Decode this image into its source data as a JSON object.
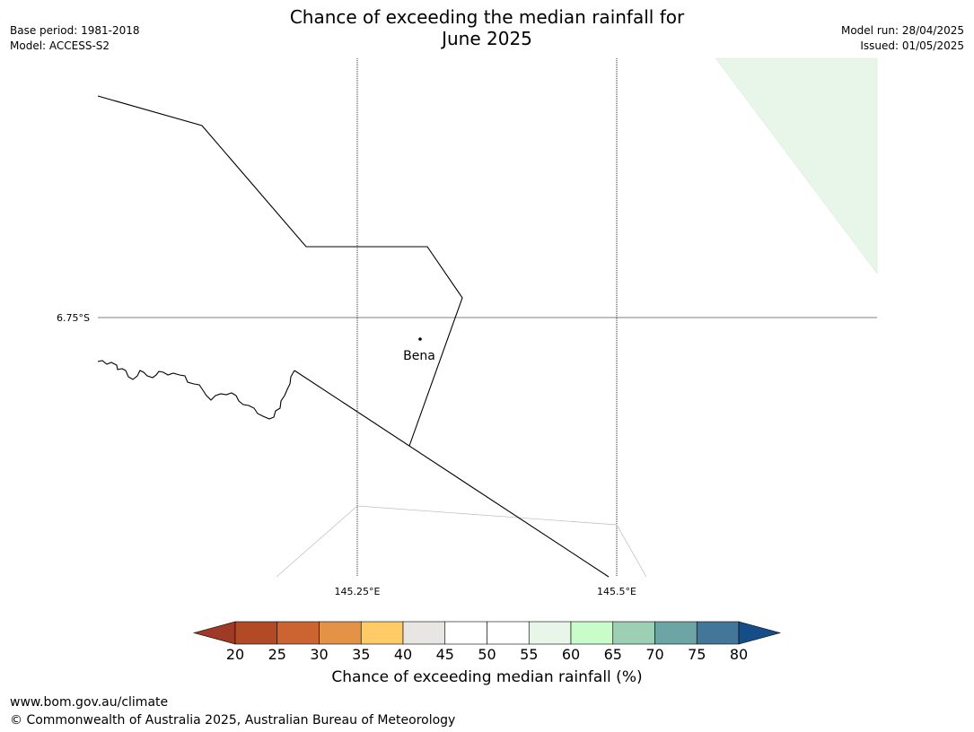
{
  "title": {
    "line1": "Chance of exceeding the median rainfall for",
    "line2": "June 2025"
  },
  "meta_left": {
    "base_period": "Base period: 1981-2018",
    "model": "Model: ACCESS-S2"
  },
  "meta_right": {
    "model_run": "Model run: 28/04/2025",
    "issued": "Issued: 01/05/2025"
  },
  "map": {
    "latitude_labels": [
      "6.75°S"
    ],
    "longitude_labels": [
      "145.25°E",
      "145.5°E"
    ],
    "place": "Bena",
    "shading_color": "#e8f5e9"
  },
  "colorbar": {
    "ticks": [
      "20",
      "25",
      "30",
      "35",
      "40",
      "45",
      "50",
      "55",
      "60",
      "65",
      "70",
      "75",
      "80"
    ],
    "colors": [
      "#9e3a26",
      "#b34a26",
      "#cc6431",
      "#e49346",
      "#fecb67",
      "#e8e6e3",
      "#ffffff",
      "#ffffff",
      "#e8f5e9",
      "#c8fcc8",
      "#9ccfb4",
      "#6da5a7",
      "#42779a",
      "#154d89"
    ],
    "label": "Chance of exceeding median rainfall (%)"
  },
  "footer": {
    "url": "www.bom.gov.au/climate",
    "copyright": "© Commonwealth of Australia 2025, Australian Bureau of Meteorology"
  }
}
